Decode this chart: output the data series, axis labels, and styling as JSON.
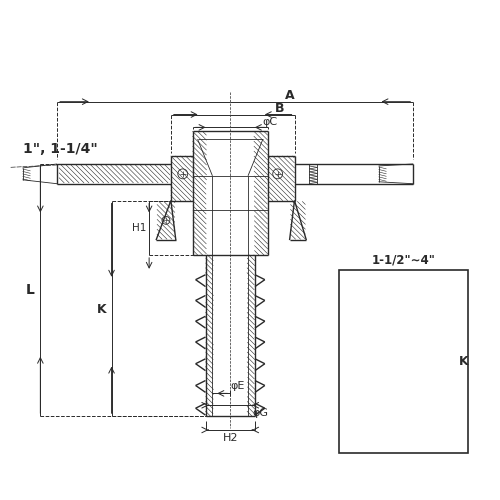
{
  "bg_color": "#ffffff",
  "line_color": "#2a2a2a",
  "fig_width": 5.0,
  "fig_height": 5.0,
  "label_1": "1\", 1-1/4\"",
  "label_A": "A",
  "label_B": "B",
  "label_C": "φC",
  "label_L": "L",
  "label_K": "K",
  "label_H1": "H1",
  "label_H2": "H2",
  "label_E": "φE",
  "label_G": "φG",
  "label_inset": "1-1/2\"∼4\""
}
